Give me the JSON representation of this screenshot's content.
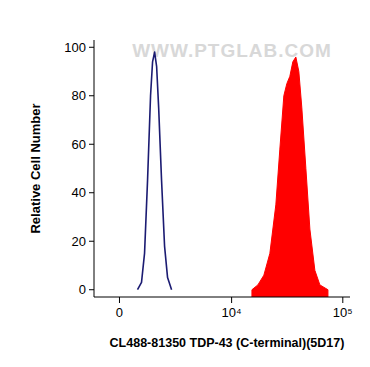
{
  "chart_data": {
    "type": "histogram",
    "x_label": "CL488-81350 TDP-43 (C-terminal)(5D17)",
    "y_label": "Relative Cell Number",
    "annotations": [
      "WWW.PTGLAB.COM"
    ],
    "log": "x",
    "xlim": [
      -1100,
      116000
    ],
    "xticks": [
      0,
      {
        "value": 10000,
        "label": "10⁴"
      },
      {
        "value": 100000,
        "label": "10⁵"
      }
    ],
    "ylim": [
      -3,
      103
    ],
    "yticks": [
      0,
      20,
      40,
      60,
      80,
      100
    ],
    "grid": false,
    "series": [
      {
        "type": "line",
        "color": "#1b1b72",
        "x": [
          761,
          940,
          1080,
          1223,
          1371,
          1473,
          1579,
          1687,
          1798,
          1962,
          2139,
          2325,
          2587
        ],
        "values": [
          0,
          3,
          15,
          45,
          80,
          94,
          98,
          92,
          75,
          45,
          18,
          5,
          0
        ]
      },
      {
        "type": "area",
        "color": "#ff0000",
        "x": [
          15290,
          17300,
          19590,
          22180,
          25100,
          27270,
          29610,
          31500,
          33520,
          35660,
          37940,
          40370,
          42950,
          46680,
          50700,
          56200,
          62300,
          73600
        ],
        "values": [
          0,
          2,
          6,
          15,
          35,
          58,
          80,
          85,
          88,
          94,
          96,
          90,
          75,
          50,
          25,
          8,
          2,
          0
        ]
      }
    ]
  }
}
